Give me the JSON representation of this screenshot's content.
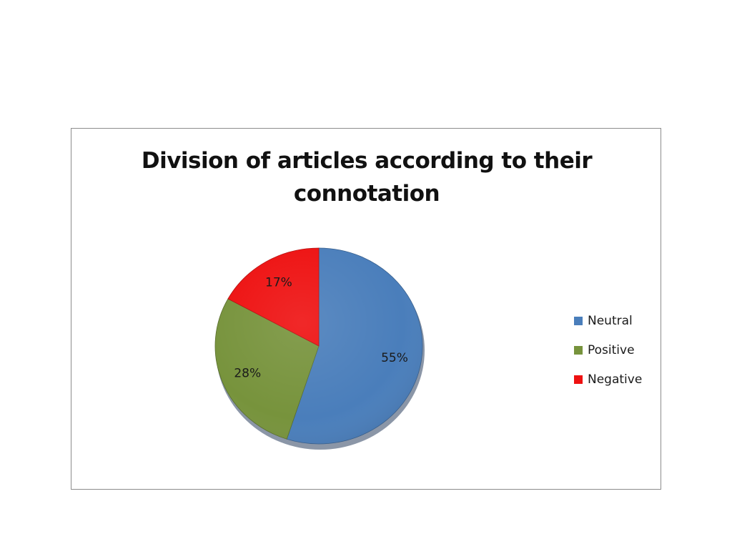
{
  "chart_data": {
    "type": "pie",
    "title": "Division of articles according to their connotation",
    "title_lines": [
      "Division of articles according to their",
      "connotation"
    ],
    "series": [
      {
        "categories": [
          "Neutral",
          "Positive",
          "Negative"
        ],
        "values": [
          55,
          28,
          17
        ],
        "data_labels": [
          "55%",
          "28%",
          "17%"
        ],
        "colors": [
          "#4a7ebb",
          "#77933c",
          "#ee1111"
        ]
      }
    ],
    "legend": {
      "position": "right",
      "entries": [
        "Neutral",
        "Positive",
        "Negative"
      ]
    },
    "start_angle": "12 o'clock",
    "direction": "clockwise",
    "style": "3D-shaded pie"
  }
}
